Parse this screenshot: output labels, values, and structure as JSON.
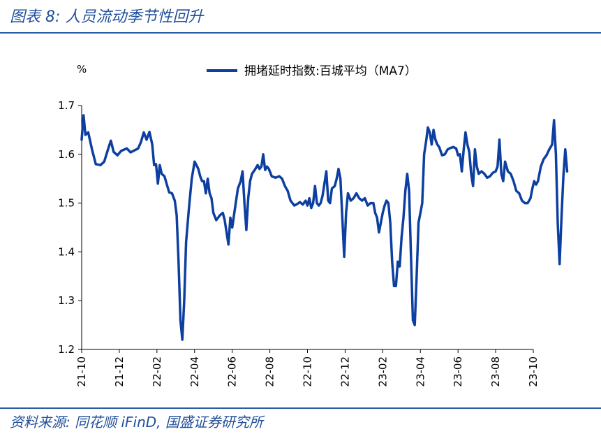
{
  "figure": {
    "title": "图表 8:  人员流动季节性回升",
    "source": "资料来源:  同花顺 iFinD,  国盛证券研究所"
  },
  "chart_data": {
    "type": "line",
    "unit_label": "%",
    "ylim": [
      1.2,
      1.7
    ],
    "yticks": [
      1.2,
      1.3,
      1.4,
      1.5,
      1.6,
      1.7
    ],
    "ytick_labels": [
      "1.2",
      "1.3",
      "1.4",
      "1.5",
      "1.6",
      "1.7"
    ],
    "xticks": [
      "21-10",
      "21-12",
      "22-02",
      "22-04",
      "22-06",
      "22-08",
      "22-10",
      "22-12",
      "23-02",
      "23-04",
      "23-06",
      "23-08",
      "23-10"
    ],
    "x_start": "2021-10",
    "x_end": "2023-10",
    "legend_position": "top-center",
    "series": [
      {
        "name": "拥堵延时指数:百城平均（MA7）",
        "color": "#0d3fa0",
        "points": [
          [
            0.0,
            1.63
          ],
          [
            0.1,
            1.68
          ],
          [
            0.2,
            1.64
          ],
          [
            0.35,
            1.645
          ],
          [
            0.55,
            1.61
          ],
          [
            0.75,
            1.58
          ],
          [
            1.0,
            1.578
          ],
          [
            1.2,
            1.585
          ],
          [
            1.4,
            1.61
          ],
          [
            1.55,
            1.628
          ],
          [
            1.7,
            1.605
          ],
          [
            1.9,
            1.598
          ],
          [
            2.1,
            1.607
          ],
          [
            2.4,
            1.612
          ],
          [
            2.6,
            1.604
          ],
          [
            2.8,
            1.608
          ],
          [
            3.0,
            1.612
          ],
          [
            3.15,
            1.625
          ],
          [
            3.3,
            1.645
          ],
          [
            3.45,
            1.63
          ],
          [
            3.6,
            1.646
          ],
          [
            3.75,
            1.62
          ],
          [
            3.85,
            1.578
          ],
          [
            3.95,
            1.58
          ],
          [
            4.05,
            1.54
          ],
          [
            4.15,
            1.578
          ],
          [
            4.25,
            1.56
          ],
          [
            4.4,
            1.555
          ],
          [
            4.55,
            1.535
          ],
          [
            4.65,
            1.522
          ],
          [
            4.8,
            1.52
          ],
          [
            4.95,
            1.505
          ],
          [
            5.05,
            1.475
          ],
          [
            5.15,
            1.38
          ],
          [
            5.25,
            1.26
          ],
          [
            5.35,
            1.22
          ],
          [
            5.45,
            1.3
          ],
          [
            5.55,
            1.42
          ],
          [
            5.7,
            1.49
          ],
          [
            5.85,
            1.55
          ],
          [
            6.0,
            1.585
          ],
          [
            6.1,
            1.578
          ],
          [
            6.2,
            1.57
          ],
          [
            6.3,
            1.555
          ],
          [
            6.4,
            1.545
          ],
          [
            6.5,
            1.545
          ],
          [
            6.6,
            1.52
          ],
          [
            6.7,
            1.55
          ],
          [
            6.8,
            1.52
          ],
          [
            6.9,
            1.51
          ],
          [
            7.0,
            1.48
          ],
          [
            7.15,
            1.465
          ],
          [
            7.35,
            1.475
          ],
          [
            7.5,
            1.48
          ],
          [
            7.6,
            1.465
          ],
          [
            7.7,
            1.44
          ],
          [
            7.8,
            1.415
          ],
          [
            7.9,
            1.47
          ],
          [
            8.0,
            1.45
          ],
          [
            8.15,
            1.49
          ],
          [
            8.3,
            1.53
          ],
          [
            8.45,
            1.545
          ],
          [
            8.55,
            1.565
          ],
          [
            8.65,
            1.5
          ],
          [
            8.75,
            1.445
          ],
          [
            8.85,
            1.51
          ],
          [
            8.95,
            1.545
          ],
          [
            9.05,
            1.56
          ],
          [
            9.2,
            1.568
          ],
          [
            9.35,
            1.578
          ],
          [
            9.45,
            1.57
          ],
          [
            9.55,
            1.575
          ],
          [
            9.65,
            1.6
          ],
          [
            9.75,
            1.568
          ],
          [
            9.85,
            1.575
          ],
          [
            9.95,
            1.57
          ],
          [
            10.1,
            1.555
          ],
          [
            10.3,
            1.552
          ],
          [
            10.5,
            1.555
          ],
          [
            10.65,
            1.55
          ],
          [
            10.8,
            1.535
          ],
          [
            10.95,
            1.525
          ],
          [
            11.1,
            1.505
          ],
          [
            11.3,
            1.495
          ],
          [
            11.45,
            1.498
          ],
          [
            11.6,
            1.502
          ],
          [
            11.75,
            1.497
          ],
          [
            11.9,
            1.505
          ],
          [
            12.0,
            1.495
          ],
          [
            12.1,
            1.51
          ],
          [
            12.2,
            1.49
          ],
          [
            12.3,
            1.5
          ],
          [
            12.4,
            1.535
          ],
          [
            12.5,
            1.5
          ],
          [
            12.6,
            1.495
          ],
          [
            12.7,
            1.5
          ],
          [
            12.8,
            1.515
          ],
          [
            12.9,
            1.54
          ],
          [
            13.0,
            1.565
          ],
          [
            13.1,
            1.505
          ],
          [
            13.2,
            1.5
          ],
          [
            13.3,
            1.53
          ],
          [
            13.45,
            1.535
          ],
          [
            13.55,
            1.55
          ],
          [
            13.65,
            1.57
          ],
          [
            13.75,
            1.55
          ],
          [
            13.85,
            1.47
          ],
          [
            13.95,
            1.39
          ],
          [
            14.05,
            1.48
          ],
          [
            14.15,
            1.52
          ],
          [
            14.3,
            1.505
          ],
          [
            14.45,
            1.51
          ],
          [
            14.6,
            1.52
          ],
          [
            14.75,
            1.51
          ],
          [
            14.9,
            1.505
          ],
          [
            15.05,
            1.51
          ],
          [
            15.2,
            1.495
          ],
          [
            15.35,
            1.5
          ],
          [
            15.5,
            1.5
          ],
          [
            15.6,
            1.48
          ],
          [
            15.7,
            1.47
          ],
          [
            15.8,
            1.44
          ],
          [
            15.9,
            1.46
          ],
          [
            16.0,
            1.48
          ],
          [
            16.1,
            1.495
          ],
          [
            16.2,
            1.505
          ],
          [
            16.3,
            1.5
          ],
          [
            16.4,
            1.46
          ],
          [
            16.5,
            1.38
          ],
          [
            16.6,
            1.33
          ],
          [
            16.7,
            1.33
          ],
          [
            16.8,
            1.38
          ],
          [
            16.9,
            1.37
          ],
          [
            17.0,
            1.43
          ],
          [
            17.1,
            1.47
          ],
          [
            17.2,
            1.525
          ],
          [
            17.3,
            1.56
          ],
          [
            17.4,
            1.525
          ],
          [
            17.5,
            1.39
          ],
          [
            17.6,
            1.26
          ],
          [
            17.7,
            1.25
          ],
          [
            17.8,
            1.35
          ],
          [
            17.9,
            1.46
          ],
          [
            18.0,
            1.48
          ],
          [
            18.1,
            1.5
          ],
          [
            18.2,
            1.6
          ],
          [
            18.3,
            1.625
          ],
          [
            18.4,
            1.655
          ],
          [
            18.5,
            1.645
          ],
          [
            18.6,
            1.62
          ],
          [
            18.7,
            1.65
          ],
          [
            18.8,
            1.63
          ],
          [
            18.9,
            1.62
          ],
          [
            19.0,
            1.615
          ],
          [
            19.15,
            1.598
          ],
          [
            19.3,
            1.6
          ],
          [
            19.45,
            1.61
          ],
          [
            19.6,
            1.613
          ],
          [
            19.75,
            1.615
          ],
          [
            19.9,
            1.612
          ],
          [
            20.0,
            1.598
          ],
          [
            20.1,
            1.6
          ],
          [
            20.2,
            1.565
          ],
          [
            20.3,
            1.61
          ],
          [
            20.4,
            1.645
          ],
          [
            20.5,
            1.62
          ],
          [
            20.6,
            1.605
          ],
          [
            20.7,
            1.56
          ],
          [
            20.8,
            1.535
          ],
          [
            20.9,
            1.61
          ],
          [
            21.0,
            1.575
          ],
          [
            21.1,
            1.56
          ],
          [
            21.25,
            1.565
          ],
          [
            21.4,
            1.56
          ],
          [
            21.55,
            1.552
          ],
          [
            21.7,
            1.555
          ],
          [
            21.85,
            1.562
          ],
          [
            22.0,
            1.565
          ],
          [
            22.1,
            1.575
          ],
          [
            22.2,
            1.63
          ],
          [
            22.3,
            1.56
          ],
          [
            22.4,
            1.545
          ],
          [
            22.5,
            1.585
          ],
          [
            22.65,
            1.565
          ],
          [
            22.8,
            1.56
          ],
          [
            22.95,
            1.545
          ],
          [
            23.1,
            1.525
          ],
          [
            23.25,
            1.52
          ],
          [
            23.4,
            1.505
          ],
          [
            23.55,
            1.5
          ],
          [
            23.7,
            1.5
          ],
          [
            23.85,
            1.51
          ],
          [
            23.95,
            1.53
          ],
          [
            24.05,
            1.545
          ],
          [
            24.15,
            1.538
          ],
          [
            24.25,
            1.545
          ],
          [
            24.4,
            1.575
          ],
          [
            24.55,
            1.59
          ],
          [
            24.7,
            1.598
          ],
          [
            24.85,
            1.61
          ],
          [
            25.0,
            1.62
          ],
          [
            25.1,
            1.67
          ],
          [
            25.2,
            1.6
          ],
          [
            25.3,
            1.46
          ],
          [
            25.4,
            1.375
          ],
          [
            25.5,
            1.47
          ],
          [
            25.6,
            1.555
          ],
          [
            25.7,
            1.61
          ],
          [
            25.8,
            1.565
          ]
        ]
      }
    ]
  }
}
